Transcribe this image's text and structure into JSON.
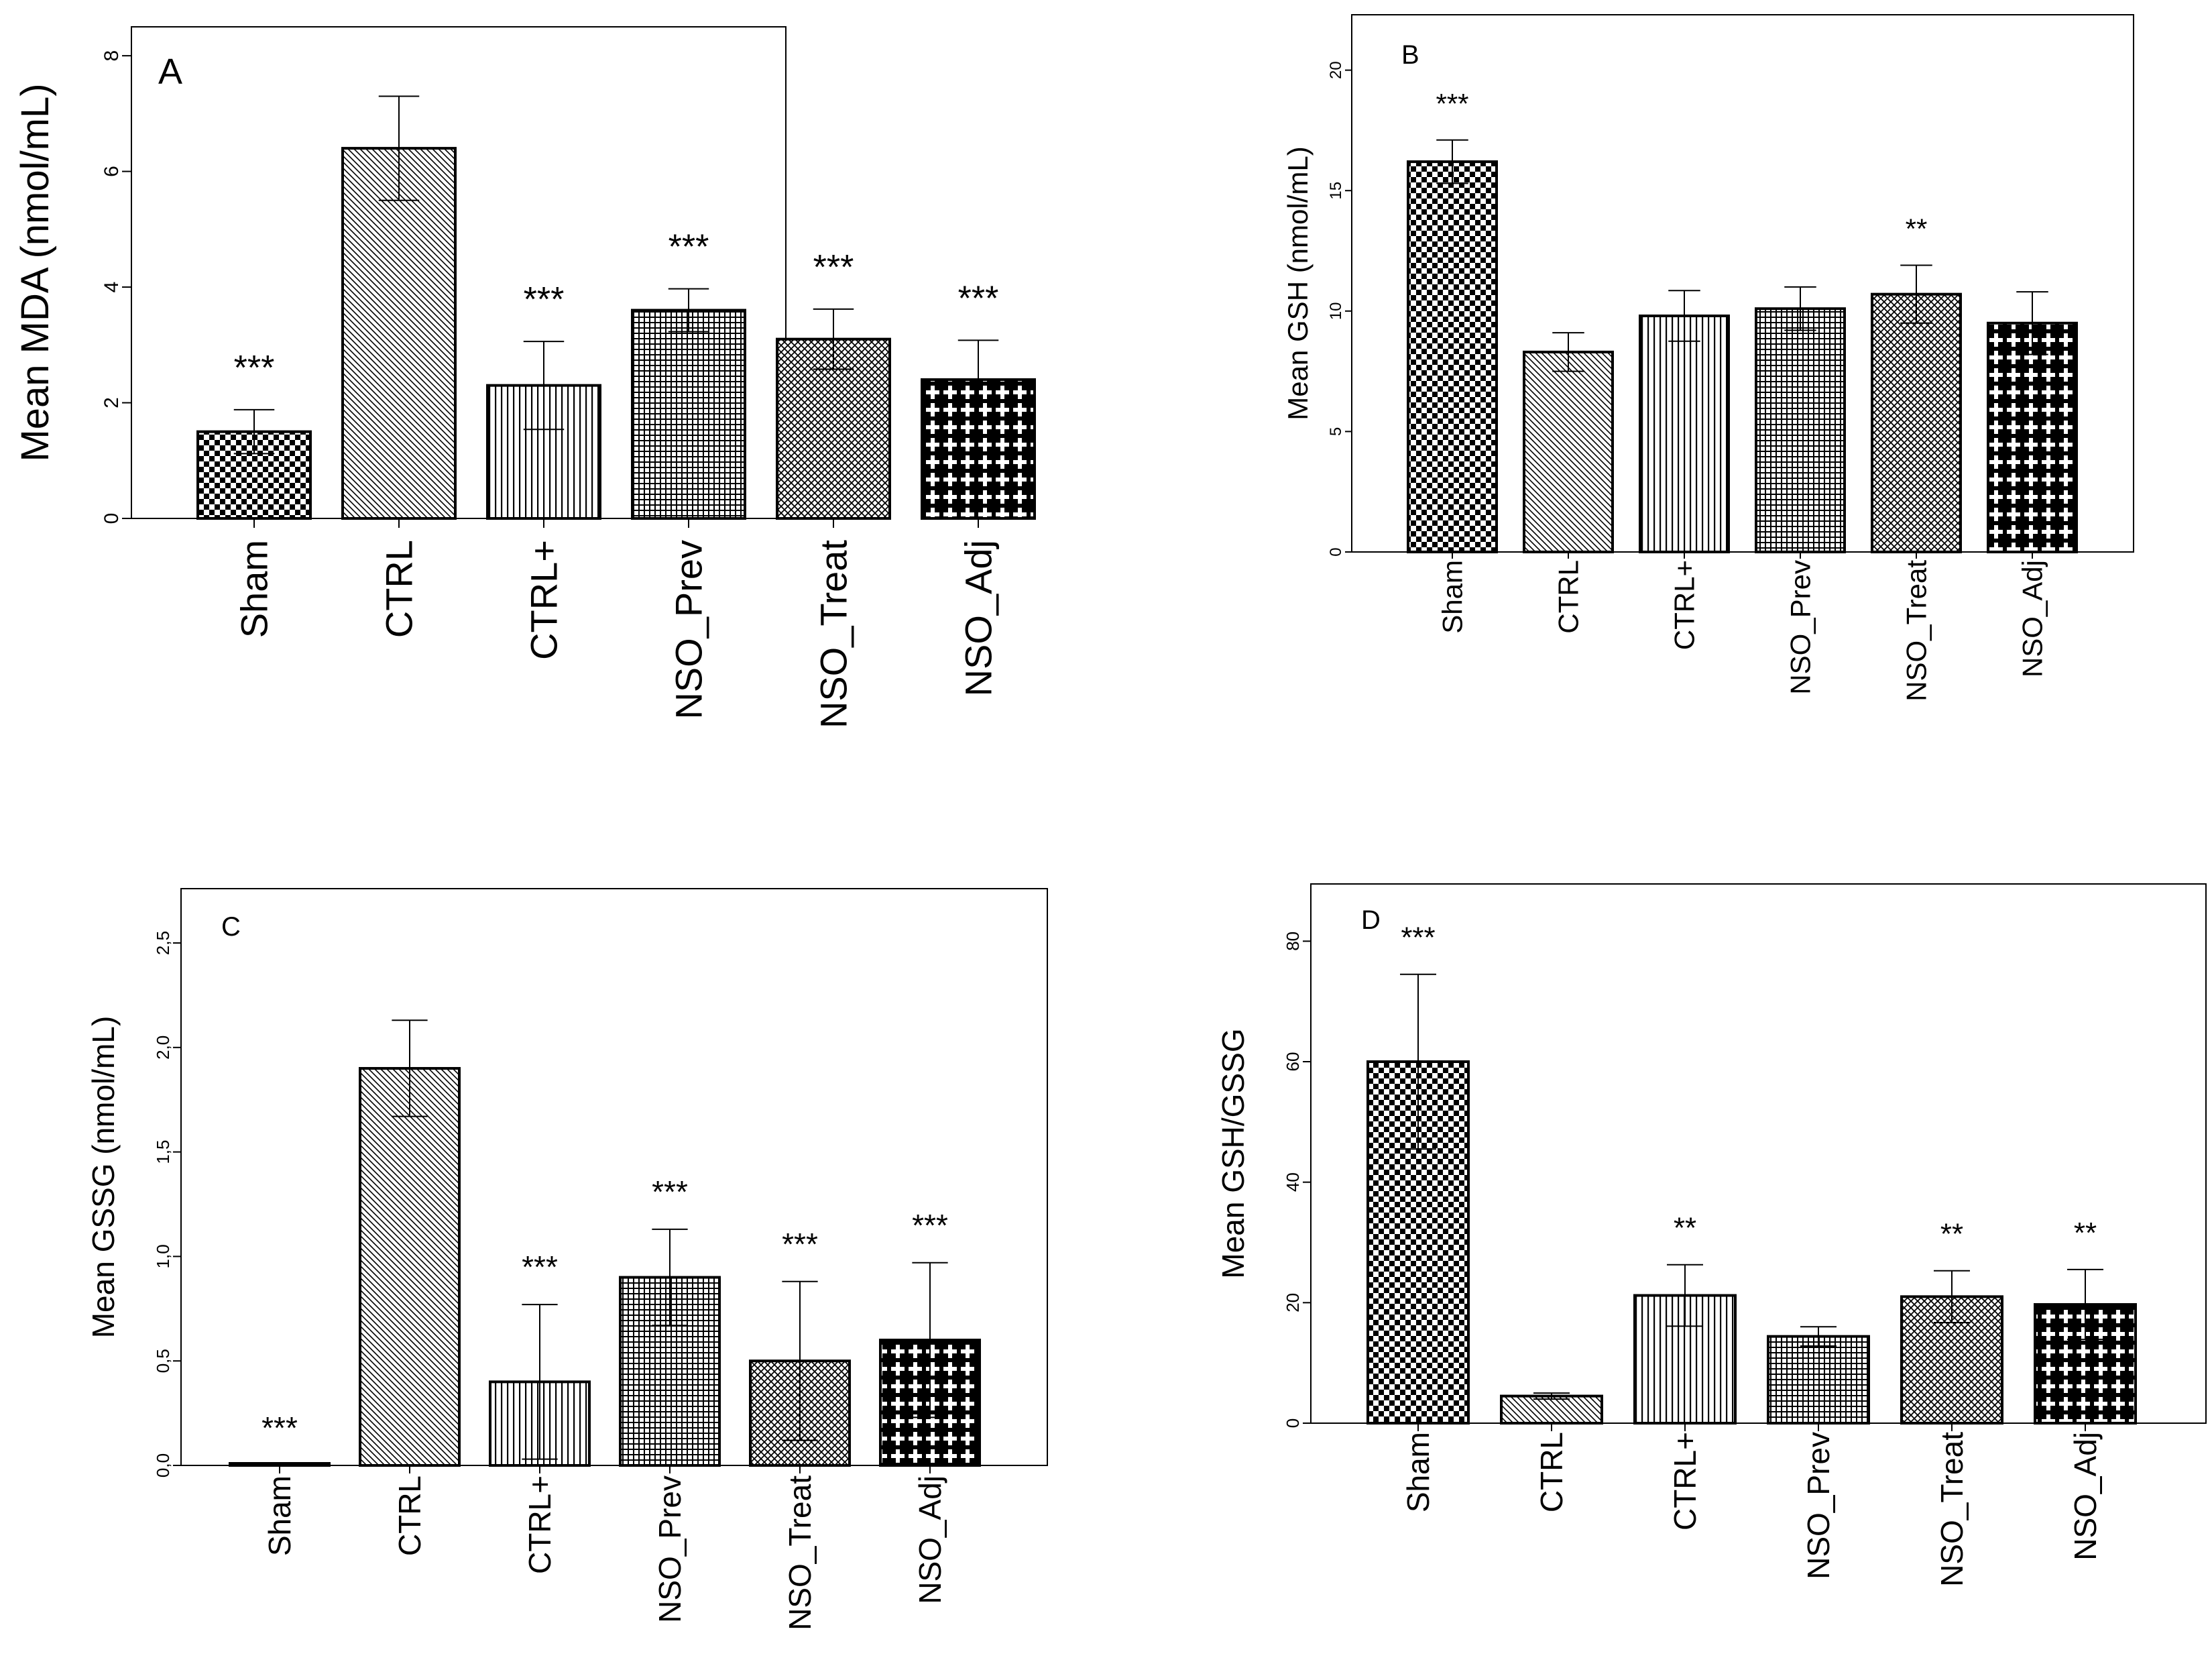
{
  "figure": {
    "colors": {
      "ink": "#000000",
      "background": "#ffffff"
    },
    "pattern_names": [
      "checker",
      "diag-hatch",
      "vertical-lines",
      "fine-grid",
      "cross-hatch",
      "plus-diamonds"
    ]
  },
  "chart_data": [
    {
      "panel": "A",
      "type": "bar",
      "title": "",
      "ylabel": "Mean MDA (nmol/mL)",
      "xlabel": "",
      "ylim": [
        0,
        8.5
      ],
      "yticks": [
        0,
        2,
        4,
        6,
        8
      ],
      "ytick_labels": [
        "0",
        "2",
        "4",
        "6",
        "8"
      ],
      "categories": [
        "Sham",
        "CTRL",
        "CTRL+",
        "NSO_Prev",
        "NSO_Treat",
        "NSO_Adj"
      ],
      "values": [
        1.5,
        6.4,
        2.3,
        3.6,
        3.1,
        2.4
      ],
      "errors": [
        0.38,
        0.9,
        0.76,
        0.37,
        0.52,
        0.68
      ],
      "significance": [
        "***",
        "",
        "***",
        "***",
        "***",
        "***"
      ],
      "legend": "none",
      "grid": false
    },
    {
      "panel": "B",
      "type": "bar",
      "title": "",
      "ylabel": "Mean GSH (nmol/mL)",
      "xlabel": "",
      "ylim": [
        0,
        22.3
      ],
      "yticks": [
        0,
        5,
        10,
        15,
        20
      ],
      "ytick_labels": [
        "0",
        "5",
        "10",
        "15",
        "20"
      ],
      "categories": [
        "Sham",
        "CTRL",
        "CTRL+",
        "NSO_Prev",
        "NSO_Treat",
        "NSO_Adj"
      ],
      "values": [
        16.2,
        8.3,
        9.8,
        10.1,
        10.7,
        9.5
      ],
      "errors": [
        0.9,
        0.8,
        1.05,
        0.9,
        1.2,
        1.3
      ],
      "significance": [
        "***",
        "",
        "",
        "",
        "**",
        ""
      ],
      "legend": "none",
      "grid": false
    },
    {
      "panel": "C",
      "type": "bar",
      "title": "",
      "ylabel": "Mean GSSG (nmol/mL)",
      "xlabel": "",
      "ylim": [
        0,
        2.76
      ],
      "yticks": [
        0,
        0.5,
        1.0,
        1.5,
        2.0,
        2.5
      ],
      "ytick_labels": [
        "0,0",
        "0,5",
        "1,0",
        "1,5",
        "2,0",
        "2,5"
      ],
      "categories": [
        "Sham",
        "CTRL",
        "CTRL+",
        "NSO_Prev",
        "NSO_Treat",
        "NSO_Adj"
      ],
      "values": [
        0.0,
        1.9,
        0.4,
        0.9,
        0.5,
        0.6
      ],
      "errors": [
        0.0,
        0.23,
        0.37,
        0.23,
        0.38,
        0.37
      ],
      "significance": [
        "***",
        "",
        "***",
        "***",
        "***",
        "***"
      ],
      "legend": "none",
      "grid": false
    },
    {
      "panel": "D",
      "type": "bar",
      "title": "",
      "ylabel": "Mean GSH/GSSG",
      "xlabel": "",
      "ylim": [
        0,
        89.5
      ],
      "yticks": [
        0,
        20,
        40,
        60,
        80
      ],
      "ytick_labels": [
        "0",
        "20",
        "40",
        "60",
        "80"
      ],
      "categories": [
        "Sham",
        "CTRL",
        "CTRL+",
        "NSO_Prev",
        "NSO_Treat",
        "NSO_Adj"
      ],
      "values": [
        60.0,
        4.5,
        21.2,
        14.4,
        21.0,
        19.7
      ],
      "errors": [
        14.5,
        0.5,
        5.1,
        1.6,
        4.3,
        5.8
      ],
      "significance": [
        "***",
        "",
        "**",
        "",
        "**",
        "**"
      ],
      "legend": "none",
      "grid": false
    }
  ]
}
